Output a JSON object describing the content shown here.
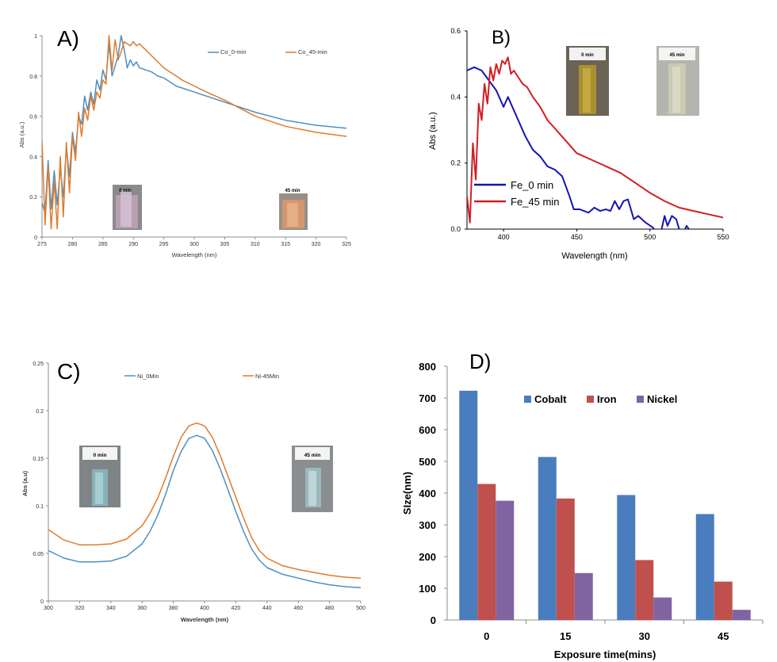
{
  "colors": {
    "orange": "#e07b2a",
    "steel": "#4f8fbf",
    "fe0": "#1414b4",
    "fe45": "#d21e24",
    "cobalt": "#4a7dbd",
    "iron": "#c0504d",
    "nickel": "#8064a2",
    "axis": "#8c8c8c",
    "axisDark": "#000000"
  },
  "chart_data": [
    {
      "id": "A",
      "type": "line",
      "panel_label": "A)",
      "xlabel": "Wavelength (nm)",
      "ylabel": "Abs (a.u.)",
      "xlim": [
        275,
        325
      ],
      "ylim": [
        0,
        1
      ],
      "xticks": [
        "275",
        "280",
        "285",
        "290",
        "295",
        "300",
        "305",
        "310",
        "315",
        "320",
        "325"
      ],
      "yticks": [
        "0",
        "0.2",
        "0.4",
        "0.6",
        "0.8",
        "1"
      ],
      "legend_position": "top-right",
      "inset_labels": [
        "0 min",
        "45 min"
      ],
      "series": [
        {
          "name": "Co_0-min",
          "color": "steel",
          "x": [
            275,
            275.5,
            276,
            276.5,
            277,
            277.5,
            278,
            278.5,
            279,
            279.5,
            280,
            280.5,
            281,
            281.5,
            282,
            282.5,
            283,
            283.5,
            284,
            284.5,
            285,
            285.5,
            286,
            286.5,
            287,
            287.5,
            288,
            288.5,
            289,
            289.5,
            290,
            290.5,
            291,
            292,
            293,
            294,
            295,
            296,
            297,
            298,
            300,
            302,
            305,
            310,
            315,
            320,
            325
          ],
          "y": [
            0.17,
            0.12,
            0.38,
            0.14,
            0.33,
            0.16,
            0.34,
            0.2,
            0.45,
            0.3,
            0.52,
            0.42,
            0.6,
            0.56,
            0.7,
            0.63,
            0.72,
            0.66,
            0.78,
            0.73,
            0.83,
            0.78,
            0.96,
            0.8,
            0.85,
            0.9,
            1.0,
            0.93,
            0.84,
            0.88,
            0.85,
            0.87,
            0.84,
            0.83,
            0.82,
            0.8,
            0.79,
            0.77,
            0.75,
            0.74,
            0.72,
            0.7,
            0.67,
            0.62,
            0.58,
            0.555,
            0.54
          ]
        },
        {
          "name": "Co_45-min",
          "color": "orange",
          "x": [
            275,
            275.5,
            276,
            276.5,
            277,
            277.5,
            278,
            278.5,
            279,
            279.5,
            280,
            280.5,
            281,
            281.5,
            282,
            282.5,
            283,
            283.5,
            284,
            284.5,
            285,
            285.5,
            286,
            286.5,
            287,
            287.5,
            288,
            288.5,
            289,
            289.5,
            290,
            290.5,
            291,
            292,
            293,
            294,
            295,
            296,
            297,
            298,
            300,
            302,
            305,
            310,
            315,
            320,
            325
          ],
          "y": [
            0.48,
            0.06,
            0.35,
            0.04,
            0.28,
            0.04,
            0.4,
            0.1,
            0.47,
            0.22,
            0.5,
            0.38,
            0.62,
            0.5,
            0.64,
            0.58,
            0.7,
            0.63,
            0.72,
            0.69,
            0.78,
            0.76,
            1.0,
            0.83,
            0.98,
            0.88,
            0.92,
            0.97,
            0.96,
            0.95,
            0.97,
            0.95,
            0.96,
            0.93,
            0.9,
            0.87,
            0.84,
            0.82,
            0.8,
            0.78,
            0.75,
            0.72,
            0.68,
            0.6,
            0.55,
            0.52,
            0.5
          ]
        }
      ]
    },
    {
      "id": "B",
      "type": "line",
      "panel_label": "B)",
      "xlabel": "Wavelength (nm)",
      "ylabel": "Abs (a.u.)",
      "xlim": [
        375,
        550
      ],
      "ylim": [
        0,
        0.6
      ],
      "xticks": [
        "400",
        "450",
        "500",
        "550"
      ],
      "yticks": [
        "0.0",
        "0.2",
        "0.4",
        "0.6"
      ],
      "legend_position": "bottom-left",
      "inset_labels": [
        "0 min",
        "45 min"
      ],
      "series": [
        {
          "name": "Fe_0 min",
          "color": "fe0",
          "x": [
            375,
            380,
            385,
            390,
            395,
            400,
            403,
            406,
            410,
            415,
            420,
            425,
            430,
            435,
            440,
            445,
            448,
            452,
            458,
            462,
            466,
            470,
            473,
            476,
            479,
            482,
            485,
            487,
            489,
            492,
            497,
            502,
            506,
            508,
            510,
            512,
            515,
            518,
            520,
            522,
            525,
            530,
            535,
            540,
            545,
            550
          ],
          "y": [
            0.48,
            0.49,
            0.48,
            0.45,
            0.42,
            0.37,
            0.4,
            0.37,
            0.33,
            0.28,
            0.24,
            0.22,
            0.19,
            0.18,
            0.16,
            0.1,
            0.06,
            0.06,
            0.05,
            0.065,
            0.055,
            0.06,
            0.055,
            0.085,
            0.06,
            0.085,
            0.09,
            0.06,
            0.03,
            0.04,
            0.02,
            0.005,
            -0.02,
            0.0,
            0.04,
            0.01,
            0.04,
            0.03,
            0.0,
            -0.02,
            0.01,
            -0.02,
            -0.03,
            -0.02,
            -0.02,
            -0.03
          ]
        },
        {
          "name": "Fe_45 min",
          "color": "fe45",
          "x": [
            375,
            377,
            379,
            381,
            383,
            385,
            387,
            389,
            391,
            393,
            395,
            397,
            399,
            401,
            403,
            405,
            407,
            410,
            413,
            416,
            420,
            425,
            430,
            440,
            450,
            460,
            470,
            480,
            490,
            500,
            510,
            520,
            530,
            540,
            550
          ],
          "y": [
            0.1,
            0.02,
            0.26,
            0.15,
            0.38,
            0.33,
            0.44,
            0.38,
            0.49,
            0.45,
            0.5,
            0.47,
            0.51,
            0.5,
            0.52,
            0.47,
            0.48,
            0.46,
            0.44,
            0.43,
            0.4,
            0.37,
            0.33,
            0.28,
            0.23,
            0.21,
            0.19,
            0.17,
            0.14,
            0.11,
            0.085,
            0.065,
            0.055,
            0.045,
            0.035
          ]
        }
      ]
    },
    {
      "id": "C",
      "type": "line",
      "panel_label": "C)",
      "xlabel": "Wavelength (nm)",
      "ylabel": "Abs (a.u)",
      "xlim": [
        300,
        500
      ],
      "ylim": [
        0,
        0.25
      ],
      "xticks": [
        "300",
        "320",
        "340",
        "360",
        "380",
        "400",
        "420",
        "440",
        "460",
        "480",
        "500"
      ],
      "yticks": [
        "0",
        "0.05",
        "0.1",
        "0.15",
        "0.2",
        "0.25"
      ],
      "legend_position": "top",
      "inset_labels": [
        "0 min",
        "45 min"
      ],
      "series": [
        {
          "name": "Ni_0Min",
          "color": "steel",
          "x": [
            300,
            310,
            320,
            330,
            340,
            350,
            360,
            365,
            370,
            375,
            380,
            385,
            390,
            395,
            400,
            405,
            410,
            415,
            420,
            425,
            430,
            435,
            440,
            450,
            460,
            470,
            480,
            490,
            500
          ],
          "y": [
            0.053,
            0.045,
            0.041,
            0.041,
            0.042,
            0.047,
            0.06,
            0.073,
            0.09,
            0.112,
            0.137,
            0.157,
            0.171,
            0.174,
            0.171,
            0.158,
            0.139,
            0.117,
            0.094,
            0.073,
            0.055,
            0.043,
            0.035,
            0.028,
            0.024,
            0.02,
            0.017,
            0.015,
            0.014
          ]
        },
        {
          "name": "Ni-45Min",
          "color": "orange",
          "x": [
            300,
            310,
            320,
            330,
            340,
            350,
            360,
            365,
            370,
            375,
            380,
            385,
            390,
            395,
            400,
            405,
            410,
            415,
            420,
            425,
            430,
            435,
            440,
            450,
            460,
            470,
            480,
            490,
            500
          ],
          "y": [
            0.075,
            0.064,
            0.059,
            0.059,
            0.06,
            0.065,
            0.079,
            0.092,
            0.108,
            0.129,
            0.152,
            0.172,
            0.184,
            0.187,
            0.184,
            0.172,
            0.153,
            0.131,
            0.109,
            0.087,
            0.067,
            0.053,
            0.045,
            0.037,
            0.033,
            0.03,
            0.027,
            0.025,
            0.024
          ]
        }
      ]
    },
    {
      "id": "D",
      "type": "bar",
      "panel_label": "D)",
      "xlabel": "Exposure time(mins)",
      "ylabel": "SIze(nm)",
      "ylim": [
        0,
        800
      ],
      "yticks": [
        "0",
        "100",
        "200",
        "300",
        "400",
        "500",
        "600",
        "700",
        "800"
      ],
      "categories": [
        "0",
        "15",
        "30",
        "45"
      ],
      "legend_position": "top",
      "series": [
        {
          "name": "Cobalt",
          "color": "cobalt",
          "values": [
            723,
            514,
            394,
            334
          ]
        },
        {
          "name": "Iron",
          "color": "iron",
          "values": [
            429,
            383,
            189,
            121
          ]
        },
        {
          "name": "Nickel",
          "color": "nickel",
          "values": [
            376,
            148,
            71,
            32
          ]
        }
      ]
    }
  ]
}
